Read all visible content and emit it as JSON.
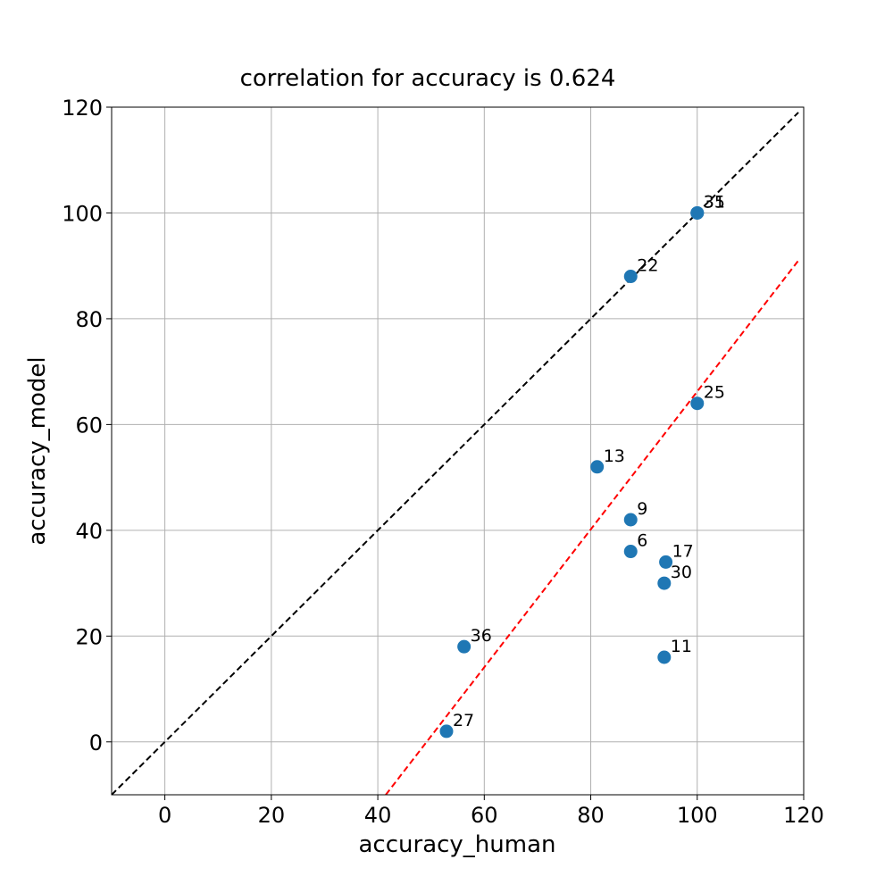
{
  "chart_data": {
    "type": "scatter",
    "title": "correlation for accuracy is 0.624",
    "xlabel": "accuracy_human",
    "ylabel": "accuracy_model",
    "xlim": [
      -10,
      120
    ],
    "ylim": [
      -10,
      120
    ],
    "xticks": [
      0,
      20,
      40,
      60,
      80,
      100,
      120
    ],
    "yticks": [
      0,
      20,
      40,
      60,
      80,
      100,
      120
    ],
    "grid": true,
    "points": [
      {
        "label": "31",
        "x": 100,
        "y": 100
      },
      {
        "label": "35",
        "x": 100,
        "y": 100
      },
      {
        "label": "22",
        "x": 87.5,
        "y": 88
      },
      {
        "label": "25",
        "x": 100,
        "y": 64
      },
      {
        "label": "13",
        "x": 81.2,
        "y": 52
      },
      {
        "label": "9",
        "x": 87.5,
        "y": 42
      },
      {
        "label": "6",
        "x": 87.5,
        "y": 36
      },
      {
        "label": "17",
        "x": 94.1,
        "y": 34
      },
      {
        "label": "30",
        "x": 93.8,
        "y": 30
      },
      {
        "label": "36",
        "x": 56.2,
        "y": 18
      },
      {
        "label": "11",
        "x": 93.8,
        "y": 16
      },
      {
        "label": "27",
        "x": 52.9,
        "y": 2
      }
    ],
    "reference_lines": [
      {
        "kind": "identity",
        "color": "#000000",
        "style": "dashed",
        "x": [
          -10,
          119
        ],
        "y": [
          -10,
          119
        ]
      },
      {
        "kind": "fit",
        "color": "#ff0000",
        "style": "dashed",
        "x": [
          41.5,
          119
        ],
        "y": [
          -10,
          91
        ]
      }
    ],
    "marker_color": "#1f77b4"
  }
}
